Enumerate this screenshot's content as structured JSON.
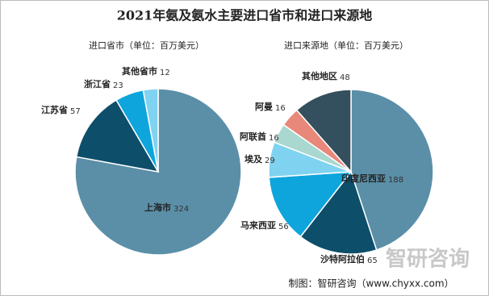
{
  "title": "2021年氨及氨水主要进口省市和进口来源地",
  "chart_data": [
    {
      "type": "pie",
      "title": "进口省市（单位：百万美元）",
      "categories": [
        "上海市",
        "江苏省",
        "浙江省",
        "其他省市"
      ],
      "values": [
        324,
        57,
        23,
        12
      ],
      "colors": [
        "#5b8fa8",
        "#0d4e6a",
        "#0ea5dc",
        "#7fd3f0"
      ]
    },
    {
      "type": "pie",
      "title": "进口来源地（单位：百万美元）",
      "categories": [
        "印度尼西亚",
        "沙特阿拉伯",
        "马来西亚",
        "埃及",
        "阿联酋",
        "阿曼",
        "其他地区"
      ],
      "values": [
        188,
        65,
        56,
        29,
        16,
        16,
        48
      ],
      "colors": [
        "#5b8fa8",
        "#0d4e6a",
        "#0ea5dc",
        "#7fd3f0",
        "#a8d8d0",
        "#e8887a",
        "#344f5e"
      ]
    }
  ],
  "watermark": "智研咨询",
  "source": "制图：智研咨询（www.chyxx.com）"
}
